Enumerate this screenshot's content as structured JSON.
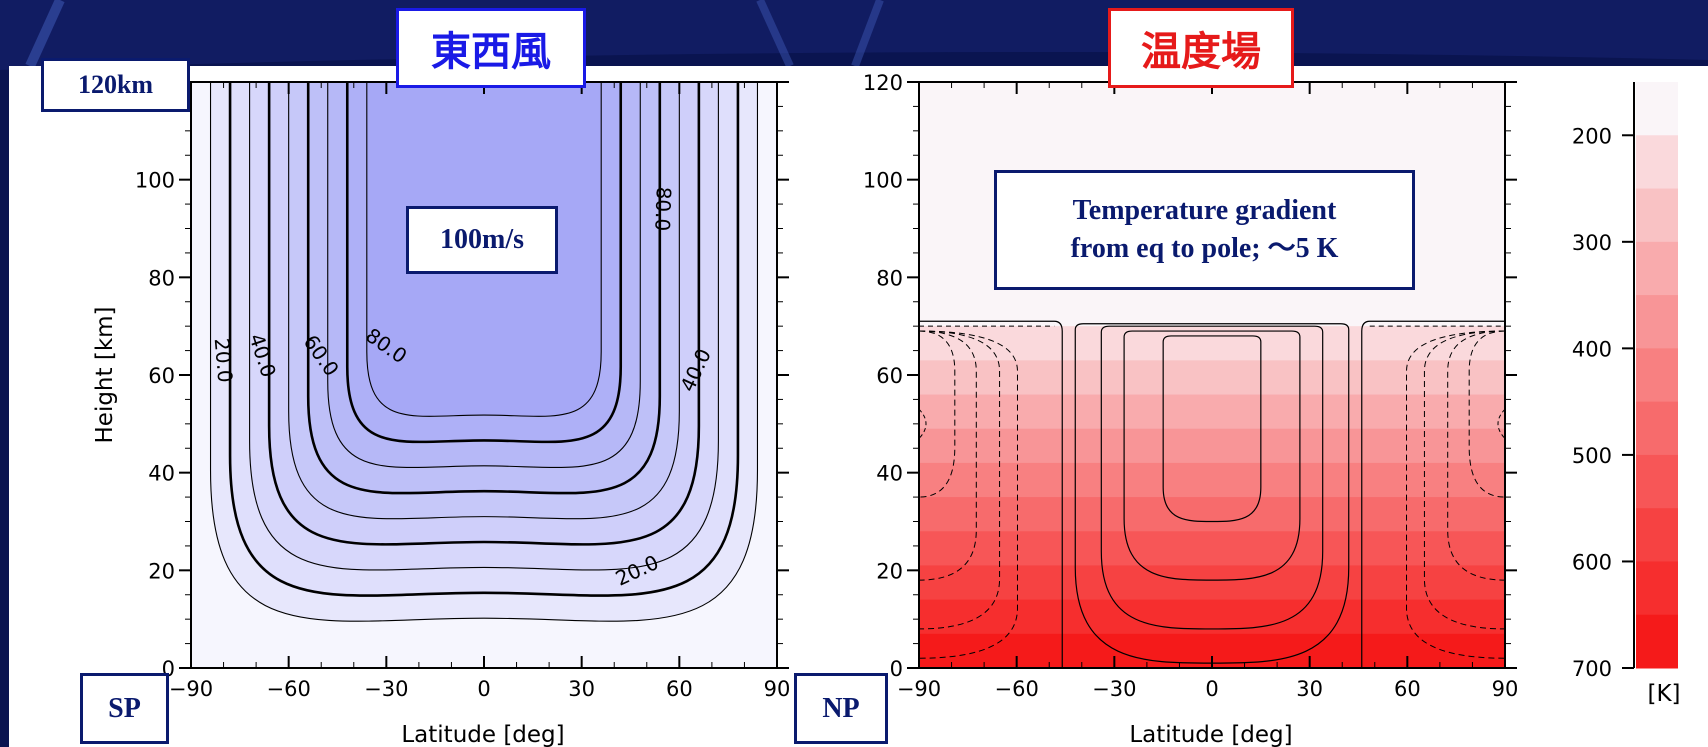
{
  "titles": {
    "zonal_wind": "東西風",
    "temperature": "温度場"
  },
  "labels": {
    "top_height": "120km",
    "south_pole": "SP",
    "north_pole": "NP",
    "max_wind": "100m/s",
    "gradient_note_line1": "Temperature gradient",
    "gradient_note_line2": "from eq to pole; ～5 K"
  },
  "colors": {
    "background": "#0a1450",
    "wind_fill": "#9ea0f5",
    "temperature_fill": "#f51a1a",
    "box_border_blue": "#0a1a6e",
    "title_blue": "#1a1ae6",
    "title_red": "#e61a1a"
  },
  "chart_data": [
    {
      "type": "contour",
      "name": "zonal-wind",
      "xlabel": "Latitude [deg]",
      "ylabel": "Height [km]",
      "xlim": [
        -90,
        90
      ],
      "ylim": [
        0,
        120
      ],
      "x_ticks": [
        "−90",
        "−60",
        "−30",
        "0",
        "30",
        "60",
        "90"
      ],
      "y_ticks": [
        "0",
        "20",
        "40",
        "60",
        "80",
        "100",
        "120"
      ],
      "contour_levels": [
        10,
        20,
        30,
        40,
        50,
        60,
        70,
        80,
        90
      ],
      "contour_labels": [
        {
          "text": "20.0",
          "x": -80,
          "y": 63,
          "angle": 85
        },
        {
          "text": "40.0",
          "x": -68,
          "y": 64,
          "angle": 72
        },
        {
          "text": "60.0",
          "x": -50,
          "y": 64,
          "angle": 55
        },
        {
          "text": "80.0",
          "x": -30,
          "y": 66,
          "angle": 35
        },
        {
          "text": "80.0",
          "x": 55,
          "y": 94,
          "angle": 92
        },
        {
          "text": "40.0",
          "x": 65,
          "y": 61,
          "angle": -65
        },
        {
          "text": "20.0",
          "x": 47,
          "y": 20,
          "angle": -25
        }
      ],
      "max_value": 100,
      "grid": false
    },
    {
      "type": "contour",
      "name": "temperature",
      "xlabel": "Latitude [deg]",
      "ylabel": "",
      "xlim": [
        -90,
        90
      ],
      "ylim": [
        0,
        120
      ],
      "x_ticks": [
        "−90",
        "−60",
        "−30",
        "0",
        "30",
        "60",
        "90"
      ],
      "y_ticks": [
        "0",
        "20",
        "40",
        "60",
        "80",
        "100",
        "120"
      ],
      "colorbar": {
        "unit": "[K]",
        "ticks": [
          "200",
          "300",
          "400",
          "500",
          "600",
          "700"
        ],
        "range": [
          150,
          700
        ],
        "step": 50
      },
      "grid": false
    }
  ]
}
